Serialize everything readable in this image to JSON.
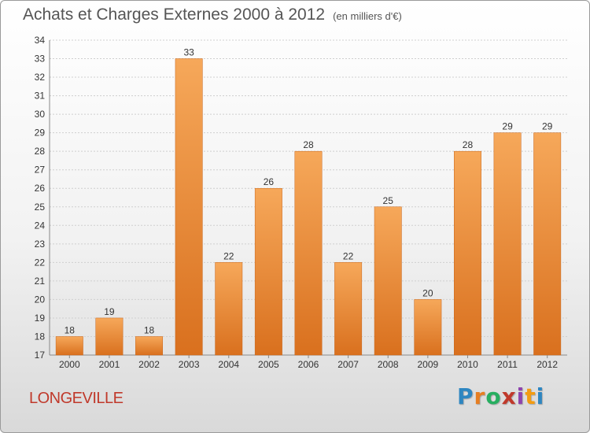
{
  "header": {
    "title": "Achats et Charges Externes 2000 à 2012",
    "unit": "(en milliers d'€)"
  },
  "footer": {
    "location": "LONGEVILLE",
    "brand": "Proxiti",
    "brand_letter_colors": [
      "#2e86c1",
      "#e67e22",
      "#27ae60",
      "#c0392b",
      "#8e44ad",
      "#f39c12",
      "#2e86c1"
    ]
  },
  "colors": {
    "bar_top": "#f6a85a",
    "bar_bottom": "#d9701e",
    "grid": "#cfcfcf",
    "axis": "#888888"
  },
  "chart_data": {
    "type": "bar",
    "title": "Achats et Charges Externes 2000 à 2012",
    "subtitle": "(en milliers d'€)",
    "categories": [
      "2000",
      "2001",
      "2002",
      "2003",
      "2004",
      "2005",
      "2006",
      "2007",
      "2008",
      "2009",
      "2010",
      "2011",
      "2012"
    ],
    "values": [
      18,
      19,
      18,
      33,
      22,
      26,
      28,
      22,
      25,
      20,
      28,
      29,
      29
    ],
    "ylim": [
      17,
      34
    ],
    "yticks": [
      17,
      18,
      19,
      20,
      21,
      22,
      23,
      24,
      25,
      26,
      27,
      28,
      29,
      30,
      31,
      32,
      33,
      34
    ],
    "grid": true,
    "data_labels": true
  }
}
